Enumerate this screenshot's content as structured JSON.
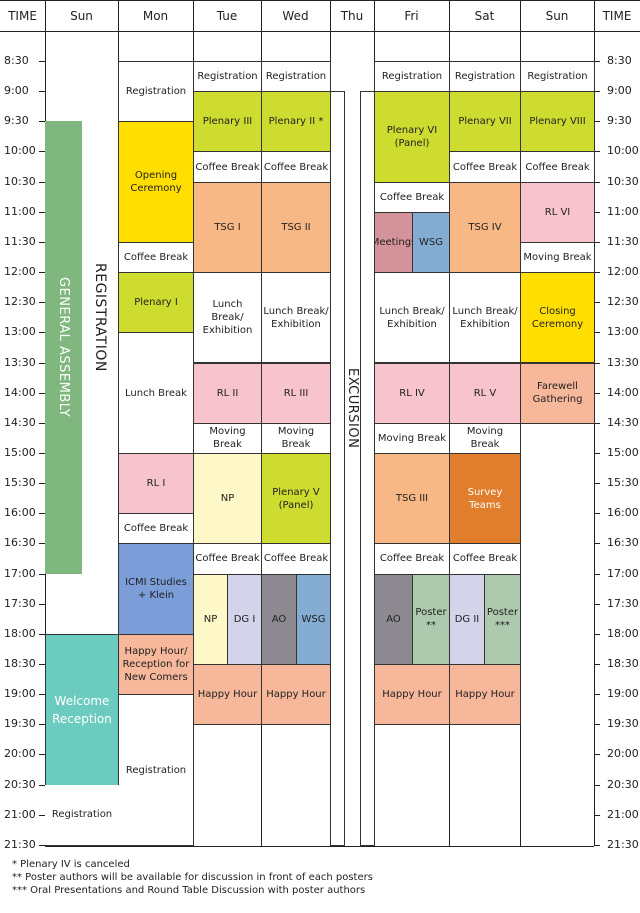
{
  "headers": [
    "TIME",
    "Sun",
    "Mon",
    "Tue",
    "Wed",
    "Thu",
    "Fri",
    "Sat",
    "Sun",
    "TIME"
  ],
  "times": [
    "8:30",
    "9:00",
    "9:30",
    "10:00",
    "10:30",
    "11:00",
    "11:30",
    "12:00",
    "12:30",
    "13:00",
    "13:30",
    "14:00",
    "14:30",
    "15:00",
    "15:30",
    "16:00",
    "16:30",
    "17:00",
    "17:30",
    "18:00",
    "18:30",
    "19:00",
    "19:30",
    "20:00",
    "20:30",
    "21:00",
    "21:30"
  ],
  "colors": {
    "green": "#cddc2f",
    "yellow": "#ffde00",
    "orange": "#f8b885",
    "pink": "#f7c3cc",
    "salmon": "#f6b79b",
    "cream": "#fff8c8",
    "lavender": "#d3d3ea",
    "gray": "#8c8a90",
    "blue": "#84abd2",
    "sage": "#aecaae",
    "rose": "#d4929a",
    "deeporange": "#e07e2d",
    "periwinkle": "#7b9dd8",
    "teal": "#6ccbbf",
    "assembly": "#7fb77e",
    "white": "#ffffff"
  },
  "sun1": {
    "general_assembly": "GENERAL ASSEMBLY",
    "registration_vertical": "REGISTRATION",
    "welcome_reception": "Welcome Reception",
    "registration": "Registration"
  },
  "thu": {
    "excursion": "EXCURSION"
  },
  "events": [
    {
      "day": "mon",
      "start": 0,
      "end": 2,
      "label": "Registration",
      "color": "white"
    },
    {
      "day": "mon",
      "start": 2,
      "end": 6,
      "label": "Opening Ceremony",
      "color": "yellow"
    },
    {
      "day": "mon",
      "start": 6,
      "end": 7,
      "label": "Coffee Break",
      "color": "white"
    },
    {
      "day": "mon",
      "start": 7,
      "end": 9,
      "label": "Plenary I",
      "color": "green"
    },
    {
      "day": "mon",
      "start": 9,
      "end": 13,
      "label": "Lunch Break",
      "color": "white"
    },
    {
      "day": "mon",
      "start": 13,
      "end": 15,
      "label": "RL I",
      "color": "pink"
    },
    {
      "day": "mon",
      "start": 15,
      "end": 16,
      "label": "Coffee Break",
      "color": "white"
    },
    {
      "day": "mon",
      "start": 16,
      "end": 19,
      "label": "ICMI Studies + Klein",
      "color": "periwinkle"
    },
    {
      "day": "mon",
      "start": 19,
      "end": 21,
      "label": "Happy Hour/ Reception for New Comers",
      "color": "salmon"
    },
    {
      "day": "mon",
      "start": 21,
      "end": 26,
      "label": "Registration",
      "color": "white"
    },
    {
      "day": "tue",
      "start": 0,
      "end": 1,
      "label": "Registration",
      "color": "white"
    },
    {
      "day": "tue",
      "start": 1,
      "end": 3,
      "label": "Plenary III",
      "color": "green"
    },
    {
      "day": "tue",
      "start": 3,
      "end": 4,
      "label": "Coffee Break",
      "color": "white"
    },
    {
      "day": "tue",
      "start": 4,
      "end": 7,
      "label": "TSG I",
      "color": "orange"
    },
    {
      "day": "tue",
      "start": 7,
      "end": 10,
      "label": "Lunch Break/ Exhibition",
      "color": "white"
    },
    {
      "day": "tue",
      "start": 10,
      "end": 12,
      "label": "RL II",
      "color": "pink"
    },
    {
      "day": "tue",
      "start": 12,
      "end": 13,
      "label": "Moving Break",
      "color": "white"
    },
    {
      "day": "tue",
      "start": 13,
      "end": 16,
      "label": "NP",
      "color": "cream"
    },
    {
      "day": "tue",
      "start": 16,
      "end": 17,
      "label": "Coffee Break",
      "color": "white"
    },
    {
      "day": "tue-a",
      "start": 17,
      "end": 20,
      "label": "NP",
      "color": "cream"
    },
    {
      "day": "tue-b",
      "start": 17,
      "end": 20,
      "label": "DG I",
      "color": "lavender"
    },
    {
      "day": "tue",
      "start": 20,
      "end": 22,
      "label": "Happy Hour",
      "color": "salmon"
    },
    {
      "day": "wed",
      "start": 0,
      "end": 1,
      "label": "Registration",
      "color": "white"
    },
    {
      "day": "wed",
      "start": 1,
      "end": 3,
      "label": "Plenary II *",
      "color": "green"
    },
    {
      "day": "wed",
      "start": 3,
      "end": 4,
      "label": "Coffee Break",
      "color": "white"
    },
    {
      "day": "wed",
      "start": 4,
      "end": 7,
      "label": "TSG II",
      "color": "orange"
    },
    {
      "day": "wed",
      "start": 7,
      "end": 10,
      "label": "Lunch Break/ Exhibition",
      "color": "white"
    },
    {
      "day": "wed",
      "start": 10,
      "end": 12,
      "label": "RL III",
      "color": "pink"
    },
    {
      "day": "wed",
      "start": 12,
      "end": 13,
      "label": "Moving Break",
      "color": "white"
    },
    {
      "day": "wed",
      "start": 13,
      "end": 16,
      "label": "Plenary V (Panel)",
      "color": "green"
    },
    {
      "day": "wed",
      "start": 16,
      "end": 17,
      "label": "Coffee Break",
      "color": "white"
    },
    {
      "day": "wed-a",
      "start": 17,
      "end": 20,
      "label": "AO",
      "color": "gray"
    },
    {
      "day": "wed-b",
      "start": 17,
      "end": 20,
      "label": "WSG",
      "color": "blue"
    },
    {
      "day": "wed",
      "start": 20,
      "end": 22,
      "label": "Happy Hour",
      "color": "salmon"
    },
    {
      "day": "fri",
      "start": 0,
      "end": 1,
      "label": "Registration",
      "color": "white"
    },
    {
      "day": "fri",
      "start": 1,
      "end": 4,
      "label": "Plenary VI (Panel)",
      "color": "green"
    },
    {
      "day": "fri",
      "start": 4,
      "end": 5,
      "label": "Coffee Break",
      "color": "white"
    },
    {
      "day": "fri-a",
      "start": 5,
      "end": 7,
      "label": "Meetings",
      "color": "rose"
    },
    {
      "day": "fri-b",
      "start": 5,
      "end": 7,
      "label": "WSG",
      "color": "blue"
    },
    {
      "day": "fri",
      "start": 7,
      "end": 10,
      "label": "Lunch Break/ Exhibition",
      "color": "white"
    },
    {
      "day": "fri",
      "start": 10,
      "end": 12,
      "label": "RL IV",
      "color": "pink"
    },
    {
      "day": "fri",
      "start": 12,
      "end": 13,
      "label": "Moving Break",
      "color": "white"
    },
    {
      "day": "fri",
      "start": 13,
      "end": 16,
      "label": "TSG III",
      "color": "orange"
    },
    {
      "day": "fri",
      "start": 16,
      "end": 17,
      "label": "Coffee Break",
      "color": "white"
    },
    {
      "day": "fri-a",
      "start": 17,
      "end": 20,
      "label": "AO",
      "color": "gray"
    },
    {
      "day": "fri-b",
      "start": 17,
      "end": 20,
      "label": "Poster **",
      "color": "sage"
    },
    {
      "day": "fri",
      "start": 20,
      "end": 22,
      "label": "Happy Hour",
      "color": "salmon"
    },
    {
      "day": "sat",
      "start": 0,
      "end": 1,
      "label": "Registration",
      "color": "white"
    },
    {
      "day": "sat",
      "start": 1,
      "end": 3,
      "label": "Plenary VII",
      "color": "green"
    },
    {
      "day": "sat",
      "start": 3,
      "end": 4,
      "label": "Coffee Break",
      "color": "white"
    },
    {
      "day": "sat",
      "start": 4,
      "end": 7,
      "label": "TSG IV",
      "color": "orange"
    },
    {
      "day": "sat",
      "start": 7,
      "end": 10,
      "label": "Lunch Break/ Exhibition",
      "color": "white"
    },
    {
      "day": "sat",
      "start": 10,
      "end": 12,
      "label": "RL V",
      "color": "pink"
    },
    {
      "day": "sat",
      "start": 12,
      "end": 13,
      "label": "Moving Break",
      "color": "white"
    },
    {
      "day": "sat",
      "start": 13,
      "end": 16,
      "label": "Survey Teams",
      "color": "deeporange"
    },
    {
      "day": "sat",
      "start": 16,
      "end": 17,
      "label": "Coffee Break",
      "color": "white"
    },
    {
      "day": "sat-a",
      "start": 17,
      "end": 20,
      "label": "DG II",
      "color": "lavender"
    },
    {
      "day": "sat-b",
      "start": 17,
      "end": 20,
      "label": "Poster ***",
      "color": "sage"
    },
    {
      "day": "sat",
      "start": 20,
      "end": 22,
      "label": "Happy Hour",
      "color": "salmon"
    },
    {
      "day": "sun2",
      "start": 0,
      "end": 1,
      "label": "Registration",
      "color": "white"
    },
    {
      "day": "sun2",
      "start": 1,
      "end": 3,
      "label": "Plenary VIII",
      "color": "green"
    },
    {
      "day": "sun2",
      "start": 3,
      "end": 4,
      "label": "Coffee Break",
      "color": "white"
    },
    {
      "day": "sun2",
      "start": 4,
      "end": 6,
      "label": "RL VI",
      "color": "pink"
    },
    {
      "day": "sun2",
      "start": 6,
      "end": 7,
      "label": "Moving Break",
      "color": "white"
    },
    {
      "day": "sun2",
      "start": 7,
      "end": 10,
      "label": "Closing Ceremony",
      "color": "yellow"
    },
    {
      "day": "sun2",
      "start": 10,
      "end": 12,
      "label": "Farewell Gathering",
      "color": "salmon"
    }
  ],
  "notes": [
    "* Plenary IV is canceled",
    "** Poster authors will be available for discussion in front of each posters",
    "*** Oral Presentations and Round Table Discussion with poster authors"
  ]
}
